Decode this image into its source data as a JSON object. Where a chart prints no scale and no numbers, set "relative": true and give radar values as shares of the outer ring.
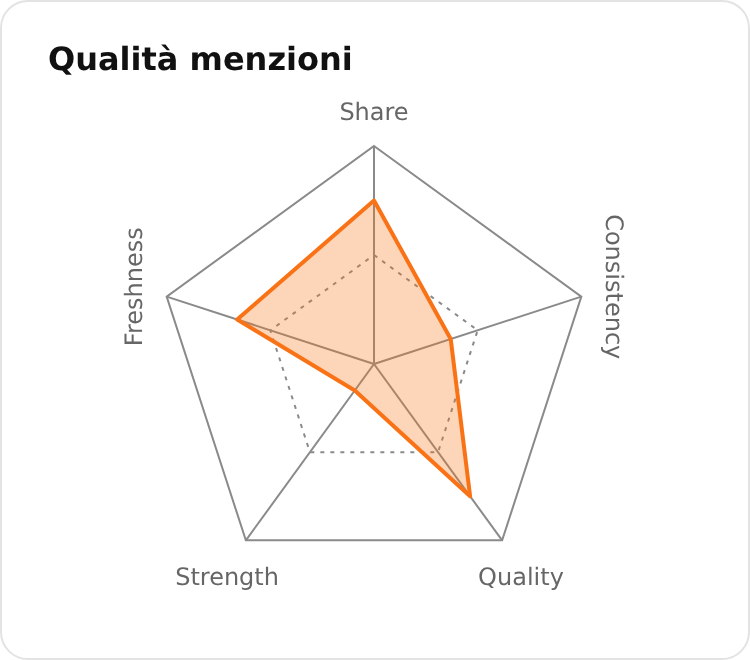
{
  "chart_data": {
    "type": "radar",
    "title": "Qualità menzioni",
    "categories": [
      "Share",
      "Consistency",
      "Quality",
      "Strength",
      "Freshness"
    ],
    "series": [
      {
        "color": "#f97316",
        "values": [
          0.75,
          0.37,
          0.75,
          0.15,
          0.66
        ]
      }
    ],
    "relative": true,
    "grid": true,
    "legend": false,
    "marker": "none"
  }
}
